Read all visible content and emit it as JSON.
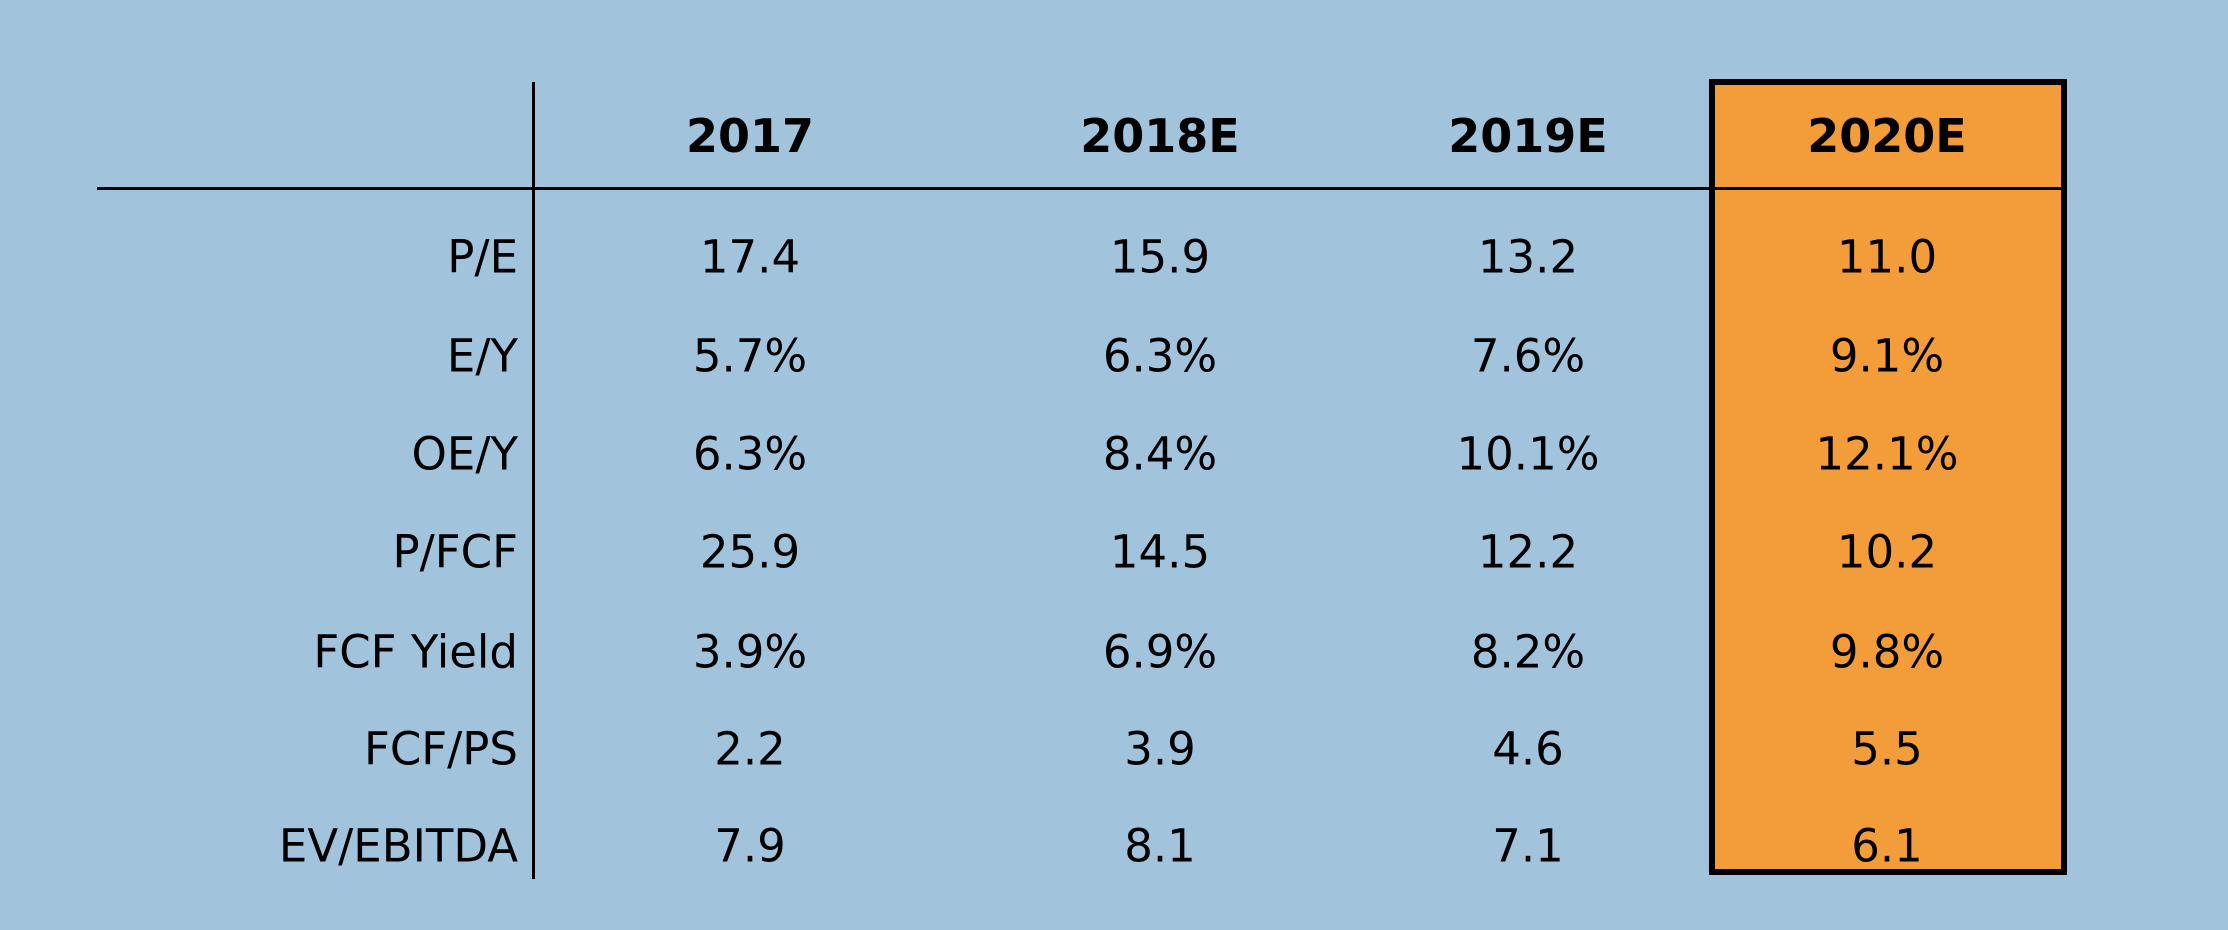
{
  "colors": {
    "background": "#a2c3dc",
    "highlight": "#f39c3a",
    "text": "#000000"
  },
  "chart_data": {
    "type": "table",
    "title": "",
    "columns": [
      "2017",
      "2018E",
      "2019E",
      "2020E"
    ],
    "highlighted_column": "2020E",
    "rows": [
      {
        "label": "P/E",
        "values": [
          "17.4",
          "15.9",
          "13.2",
          "11.0"
        ]
      },
      {
        "label": "E/Y",
        "values": [
          "5.7%",
          "6.3%",
          "7.6%",
          "9.1%"
        ]
      },
      {
        "label": "OE/Y",
        "values": [
          "6.3%",
          "8.4%",
          "10.1%",
          "12.1%"
        ]
      },
      {
        "label": "P/FCF",
        "values": [
          "25.9",
          "14.5",
          "12.2",
          "10.2"
        ]
      },
      {
        "label": "FCF Yield",
        "values": [
          "3.9%",
          "6.9%",
          "8.2%",
          "9.8%"
        ]
      },
      {
        "label": "FCF/PS",
        "values": [
          "2.2",
          "3.9",
          "4.6",
          "5.5"
        ]
      },
      {
        "label": "EV/EBITDA",
        "values": [
          "7.9",
          "8.1",
          "7.1",
          "6.1"
        ]
      }
    ]
  }
}
